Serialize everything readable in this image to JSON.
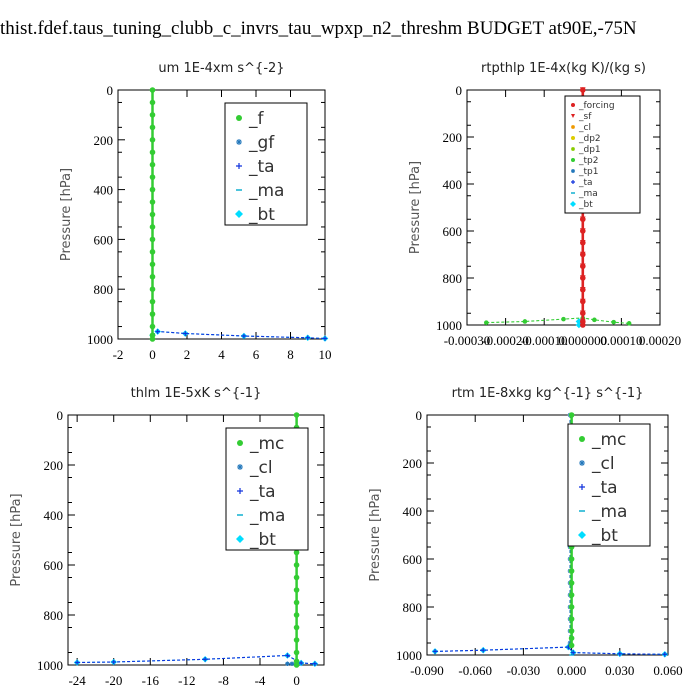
{
  "page": {
    "title": "thist.fdef.taus_tuning_clubb_c_invrs_tau_wpxp_n2_threshm  BUDGET at90E,-75N"
  },
  "chart_data": [
    {
      "type": "line",
      "title": "um   1E-4xm  s^{-2}",
      "ylabel": "Pressure  [hPa]",
      "xlim": [
        -2,
        10
      ],
      "ylim": [
        1000,
        0
      ],
      "x_ticks": [
        "-2",
        "0",
        "2",
        "4",
        "6",
        "8",
        "10"
      ],
      "y_ticks": [
        "0",
        "200",
        "400",
        "600",
        "800",
        "1000"
      ],
      "series": [
        {
          "name": "_f",
          "color": "#33cc33",
          "marker": "circle",
          "x": [
            0,
            0,
            0,
            0,
            0,
            0,
            0,
            0,
            0,
            0,
            0,
            0,
            0,
            0,
            0,
            0,
            0,
            0,
            0,
            0,
            0,
            0
          ],
          "y": [
            0,
            50,
            100,
            150,
            200,
            250,
            300,
            350,
            400,
            450,
            500,
            550,
            600,
            650,
            700,
            750,
            800,
            850,
            900,
            950,
            985,
            1000
          ]
        },
        {
          "name": "_gf",
          "color": "#2277bb",
          "marker": "star",
          "x": [
            0,
            0,
            0,
            0,
            0,
            0,
            0,
            0,
            0,
            0,
            0,
            0,
            0,
            0,
            0,
            0,
            0,
            0,
            0,
            0,
            0,
            0
          ],
          "y": [
            0,
            50,
            100,
            150,
            200,
            250,
            300,
            350,
            400,
            450,
            500,
            550,
            600,
            650,
            700,
            750,
            800,
            850,
            900,
            950,
            985,
            1000
          ]
        },
        {
          "name": "_ta",
          "color": "#1133dd",
          "marker": "plus",
          "x": [
            0,
            0.3,
            1.9,
            5.3,
            9.0,
            10
          ],
          "y": [
            985,
            970,
            978,
            988,
            995,
            998
          ]
        },
        {
          "name": "_ma",
          "color": "#00aacc",
          "marker": "dash",
          "x": [
            0,
            0,
            0,
            0,
            0
          ],
          "y": [
            0,
            250,
            500,
            750,
            1000
          ]
        },
        {
          "name": "_bt",
          "color": "#00ddff",
          "marker": "diamond",
          "x": [
            0,
            0.3,
            1.9,
            5.3,
            9.0,
            10
          ],
          "y": [
            985,
            970,
            978,
            988,
            995,
            998
          ]
        }
      ],
      "legend": {
        "position": "top-right",
        "entries": [
          "_f",
          "_gf",
          "_ta",
          "_ma",
          "_bt"
        ]
      }
    },
    {
      "type": "line",
      "title": "rtpthlp   1E-4x(kg K)/(kg s)",
      "ylabel": "Pressure  [hPa]",
      "xlim": [
        -0.0003,
        0.0002
      ],
      "ylim": [
        1000,
        0
      ],
      "x_ticks": [
        "-0.00030",
        "-0.00020",
        "-0.00010",
        "0.000000",
        "0.00010",
        "0.00020"
      ],
      "y_ticks": [
        "0",
        "200",
        "400",
        "600",
        "800",
        "1000"
      ],
      "series": [
        {
          "name": "_forcing",
          "color": "#dd2222",
          "marker": "circle",
          "x": [
            0,
            0,
            0,
            0,
            0,
            0,
            0,
            0,
            0,
            0,
            0,
            0,
            0,
            0,
            0,
            0,
            0,
            0,
            0,
            0,
            0,
            0
          ],
          "y": [
            0,
            50,
            100,
            150,
            200,
            250,
            300,
            350,
            400,
            450,
            500,
            550,
            600,
            650,
            700,
            750,
            800,
            850,
            900,
            950,
            985,
            1000
          ]
        },
        {
          "name": "_sf",
          "color": "#dd2222",
          "marker": "triangle",
          "x": [
            0,
            0,
            0,
            0,
            0,
            0,
            0,
            0,
            0,
            0,
            0,
            0,
            0,
            0,
            0,
            0,
            0,
            0,
            0,
            0,
            0,
            0
          ],
          "y": [
            0,
            50,
            100,
            150,
            200,
            250,
            300,
            350,
            400,
            450,
            500,
            550,
            600,
            650,
            700,
            750,
            800,
            850,
            900,
            950,
            985,
            1000
          ]
        },
        {
          "name": "_cl",
          "color": "#ee9900",
          "marker": "star",
          "x": [
            0,
            0
          ],
          "y": [
            0,
            1000
          ]
        },
        {
          "name": "_dp2",
          "color": "#ddcc00",
          "marker": "circle",
          "x": [
            0,
            0
          ],
          "y": [
            0,
            1000
          ]
        },
        {
          "name": "_dp1",
          "color": "#88cc00",
          "marker": "star",
          "x": [
            0,
            0
          ],
          "y": [
            0,
            1000
          ]
        },
        {
          "name": "_tp2",
          "color": "#33cc33",
          "marker": "circle",
          "x": [
            -0.00025,
            -0.00015,
            -5e-05,
            0.0,
            3e-05,
            8e-05,
            0.00012
          ],
          "y": [
            990,
            985,
            975,
            970,
            978,
            988,
            993
          ]
        },
        {
          "name": "_tp1",
          "color": "#2277bb",
          "marker": "star",
          "x": [
            0,
            0
          ],
          "y": [
            0,
            1000
          ]
        },
        {
          "name": "_ta",
          "color": "#1133dd",
          "marker": "plus",
          "x": [
            0,
            0
          ],
          "y": [
            0,
            1000
          ]
        },
        {
          "name": "_ma",
          "color": "#00aacc",
          "marker": "dash",
          "x": [
            0,
            0
          ],
          "y": [
            0,
            1000
          ]
        },
        {
          "name": "_bt",
          "color": "#00ddff",
          "marker": "diamond",
          "x": [
            -1e-05,
            -1e-05
          ],
          "y": [
            985,
            1000
          ]
        }
      ],
      "legend": {
        "position": "top-right",
        "entries": [
          "_forcing",
          "_sf",
          "_cl",
          "_dp2",
          "_dp1",
          "_tp2",
          "_tp1",
          "_ta",
          "_ma",
          "_bt"
        ]
      }
    },
    {
      "type": "line",
      "title": "thlm   1E-5xK  s^{-1}",
      "ylabel": "Pressure  [hPa]",
      "xlim": [
        -25,
        3
      ],
      "ylim": [
        1000,
        0
      ],
      "x_ticks": [
        "-24",
        "-20",
        "-16",
        "-12",
        "-8",
        "-4",
        "0"
      ],
      "x_tick_values": [
        -24,
        -20,
        -16,
        -12,
        -8,
        -4,
        0
      ],
      "y_ticks": [
        "0",
        "200",
        "400",
        "600",
        "800",
        "1000"
      ],
      "series": [
        {
          "name": "_mc",
          "color": "#33cc33",
          "marker": "circle",
          "x": [
            0,
            0,
            0,
            0,
            0,
            0,
            0,
            0,
            0,
            0,
            0,
            0,
            0,
            0,
            0,
            0,
            0,
            0,
            0,
            0,
            0,
            0
          ],
          "y": [
            0,
            50,
            100,
            150,
            200,
            250,
            300,
            350,
            400,
            450,
            500,
            550,
            600,
            650,
            700,
            750,
            800,
            850,
            900,
            950,
            985,
            1000
          ]
        },
        {
          "name": "_cl",
          "color": "#2277bb",
          "marker": "star",
          "x": [
            -1,
            -0.5,
            0,
            0
          ],
          "y": [
            995,
            995,
            995,
            1000
          ]
        },
        {
          "name": "_ta",
          "color": "#1133dd",
          "marker": "plus",
          "x": [
            -24,
            -20,
            -10,
            -1,
            0.5,
            2
          ],
          "y": [
            990,
            988,
            977,
            962,
            992,
            995
          ]
        },
        {
          "name": "_ma",
          "color": "#00aacc",
          "marker": "dash",
          "x": [
            0,
            0,
            0,
            0,
            0
          ],
          "y": [
            0,
            250,
            500,
            750,
            1000
          ]
        },
        {
          "name": "_bt",
          "color": "#00ddff",
          "marker": "diamond",
          "x": [
            -24,
            -20,
            -10,
            -1,
            0.5,
            2
          ],
          "y": [
            990,
            988,
            977,
            962,
            992,
            995
          ]
        }
      ],
      "legend": {
        "position": "top-right",
        "entries": [
          "_mc",
          "_cl",
          "_ta",
          "_ma",
          "_bt"
        ]
      }
    },
    {
      "type": "line",
      "title": "rtm   1E-8xkg  kg^{-1}  s^{-1}",
      "ylabel": "Pressure  [hPa]",
      "xlim": [
        -0.09,
        0.06
      ],
      "ylim": [
        1000,
        0
      ],
      "x_ticks": [
        "-0.090",
        "-0.060",
        "-0.030",
        "0.000",
        "0.030",
        "0.060"
      ],
      "y_ticks": [
        "0",
        "200",
        "400",
        "600",
        "800",
        "1000"
      ],
      "series": [
        {
          "name": "_mc",
          "color": "#33cc33",
          "marker": "circle",
          "x": [
            0,
            0,
            0,
            0,
            0,
            0,
            0,
            0,
            0,
            0,
            0,
            0,
            0,
            0,
            0,
            0,
            0,
            0,
            0,
            0,
            0
          ],
          "y": [
            0,
            50,
            100,
            150,
            200,
            250,
            300,
            350,
            400,
            450,
            500,
            550,
            600,
            650,
            700,
            750,
            800,
            850,
            900,
            930,
            960
          ]
        },
        {
          "name": "_cl",
          "color": "#2277bb",
          "marker": "star",
          "x": [
            -0.001,
            -0.001,
            -0.001,
            -0.001,
            -0.001,
            -0.001,
            -0.001,
            -0.001,
            -0.001,
            -0.001,
            -0.001,
            -0.001,
            -0.001,
            -0.001,
            -0.001,
            -0.001,
            -0.001,
            -0.001,
            -0.001,
            -0.001
          ],
          "y": [
            0,
            50,
            100,
            150,
            200,
            250,
            300,
            350,
            400,
            450,
            500,
            550,
            600,
            650,
            700,
            750,
            800,
            850,
            900,
            950
          ]
        },
        {
          "name": "_ta",
          "color": "#1133dd",
          "marker": "plus",
          "x": [
            -0.085,
            -0.055,
            -0.002,
            0.001,
            0.03,
            0.058
          ],
          "y": [
            985,
            980,
            967,
            990,
            995,
            997
          ]
        },
        {
          "name": "_ma",
          "color": "#00aacc",
          "marker": "dash",
          "x": [
            0,
            0,
            0,
            0,
            0
          ],
          "y": [
            0,
            250,
            500,
            750,
            1000
          ]
        },
        {
          "name": "_bt",
          "color": "#00ddff",
          "marker": "diamond",
          "x": [
            -0.085,
            -0.055,
            -0.002,
            0.001,
            0.03,
            0.058
          ],
          "y": [
            985,
            980,
            967,
            990,
            995,
            997
          ]
        }
      ],
      "legend": {
        "position": "top-right",
        "entries": [
          "_mc",
          "_cl",
          "_ta",
          "_ma",
          "_bt"
        ]
      }
    }
  ]
}
